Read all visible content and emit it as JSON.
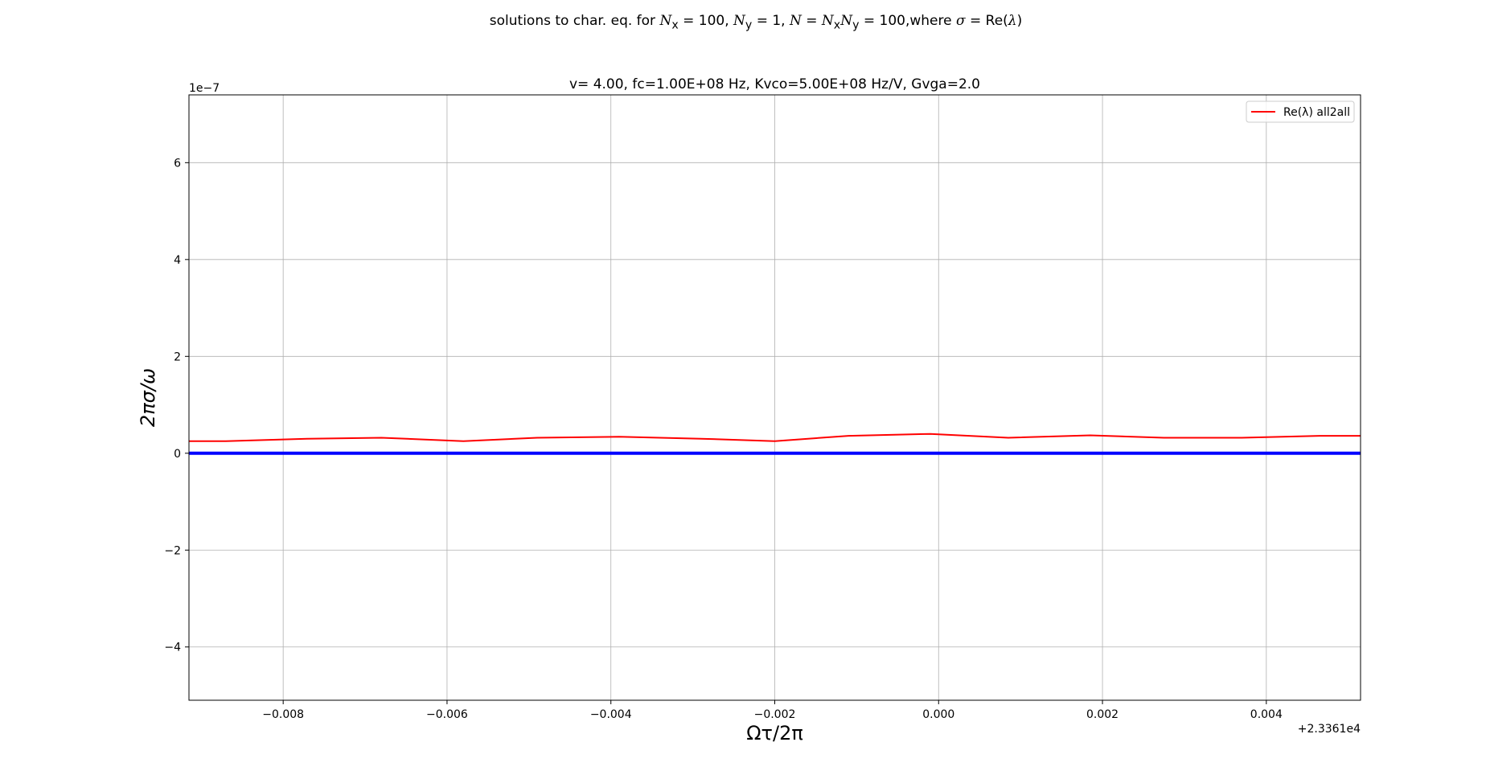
{
  "figure": {
    "suptitle_prefix": "solutions to char. eq. for ",
    "suptitle_nx": "N",
    "suptitle_nx_sub": "x",
    "suptitle_nx_eq": " = 100, ",
    "suptitle_ny": "N",
    "suptitle_ny_sub": "y",
    "suptitle_ny_eq": " = 1, ",
    "suptitle_n": "N",
    "suptitle_n_eq": " = ",
    "suptitle_n2": "N",
    "suptitle_n2_sub": "x",
    "suptitle_n3": "N",
    "suptitle_n3_sub": "y",
    "suptitle_n3_eq": " = 100,where ",
    "suptitle_sigma": "σ",
    "suptitle_tail": " = Re(",
    "suptitle_lambda": "λ",
    "suptitle_close": ")"
  },
  "chart_data": {
    "type": "line",
    "title": "v= 4.00, fc=1.00E+08 Hz, Kvco=5.00E+08 Hz/V, Gvga=2.0",
    "xlabel": "Ωτ/2π",
    "ylabel": "2πσ/ω",
    "x_offset_label": "+2.3361e4",
    "y_multiplier_label": "1e−7",
    "xlim": [
      -0.00915,
      0.00515
    ],
    "ylim": [
      -5.1,
      7.4
    ],
    "x_ticks": [
      -0.008,
      -0.006,
      -0.004,
      -0.002,
      0.0,
      0.002,
      0.004
    ],
    "x_tick_labels": [
      "−0.008",
      "−0.006",
      "−0.004",
      "−0.002",
      "0.000",
      "0.002",
      "0.004"
    ],
    "y_ticks": [
      -4,
      -2,
      0,
      2,
      4,
      6
    ],
    "y_tick_labels": [
      "−4",
      "−2",
      "0",
      "2",
      "4",
      "6"
    ],
    "grid": true,
    "legend_position": "top-right",
    "legend_label": "Re(λ) all2all",
    "series": [
      {
        "name": "Re(λ) all2all",
        "color": "#ff0000",
        "x": [
          -0.00915,
          -0.0087,
          -0.0077,
          -0.0068,
          -0.0058,
          -0.0049,
          -0.0039,
          -0.0029,
          -0.002,
          -0.0011,
          -0.0001,
          0.00085,
          0.00185,
          0.00275,
          0.0037,
          0.00465,
          0.00515
        ],
        "y": [
          0.25,
          0.25,
          0.3,
          0.32,
          0.25,
          0.32,
          0.34,
          0.3,
          0.25,
          0.36,
          0.4,
          0.32,
          0.37,
          0.32,
          0.32,
          0.36,
          0.36
        ]
      },
      {
        "color": "#0000ff",
        "x": [
          -0.00915,
          0.00515
        ],
        "y": [
          0.0,
          0.0
        ]
      }
    ]
  }
}
